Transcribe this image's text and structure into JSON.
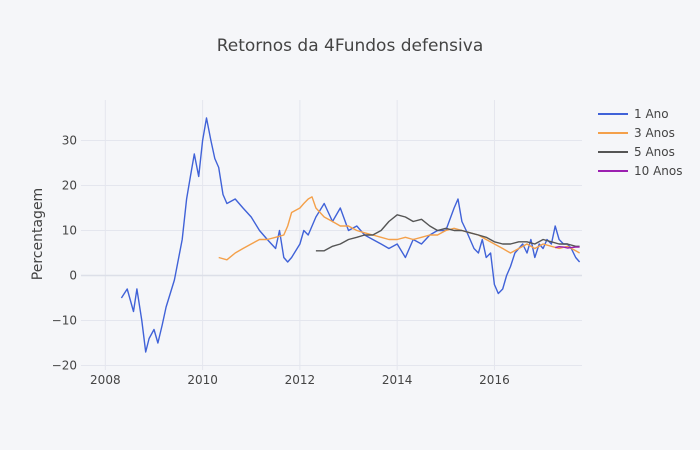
{
  "chart_data": {
    "type": "line",
    "title": "Retornos da 4Fundos defensiva",
    "xlabel": "",
    "ylabel": "Percentagem",
    "xlim": [
      2007.5,
      2017.8
    ],
    "ylim": [
      -21,
      39
    ],
    "x_ticks": [
      2008,
      2010,
      2012,
      2014,
      2016
    ],
    "x_tick_labels": [
      "2008",
      "2010",
      "2012",
      "2014",
      "2016"
    ],
    "y_ticks": [
      -20,
      -10,
      0,
      10,
      20,
      30
    ],
    "y_tick_labels": [
      "−20",
      "−10",
      "0",
      "10",
      "20",
      "30"
    ],
    "grid": true,
    "legend_position": "top-right",
    "series": [
      {
        "name": "1 Ano",
        "color": "#4062d8",
        "x": [
          2008.33,
          2008.45,
          2008.58,
          2008.65,
          2008.75,
          2008.83,
          2008.9,
          2009.0,
          2009.08,
          2009.17,
          2009.25,
          2009.42,
          2009.58,
          2009.67,
          2009.75,
          2009.83,
          2009.92,
          2010.0,
          2010.08,
          2010.17,
          2010.25,
          2010.33,
          2010.42,
          2010.5,
          2010.67,
          2010.83,
          2011.0,
          2011.17,
          2011.33,
          2011.5,
          2011.58,
          2011.67,
          2011.75,
          2011.83,
          2012.0,
          2012.08,
          2012.17,
          2012.33,
          2012.5,
          2012.67,
          2012.83,
          2013.0,
          2013.17,
          2013.33,
          2013.5,
          2013.67,
          2013.83,
          2014.0,
          2014.17,
          2014.33,
          2014.5,
          2014.67,
          2014.83,
          2015.0,
          2015.17,
          2015.25,
          2015.33,
          2015.42,
          2015.5,
          2015.58,
          2015.67,
          2015.75,
          2015.83,
          2015.92,
          2016.0,
          2016.08,
          2016.17,
          2016.25,
          2016.33,
          2016.42,
          2016.5,
          2016.58,
          2016.67,
          2016.75,
          2016.83,
          2016.92,
          2017.0,
          2017.08,
          2017.17,
          2017.25,
          2017.33,
          2017.42,
          2017.5,
          2017.58,
          2017.67,
          2017.75
        ],
        "values": [
          -5,
          -3,
          -8,
          -3,
          -10,
          -17,
          -14,
          -12,
          -15,
          -11,
          -7,
          -1,
          8,
          17,
          22,
          27,
          22,
          30,
          35,
          30,
          26,
          24,
          18,
          16,
          17,
          15,
          13,
          10,
          8,
          6,
          10,
          4,
          3,
          4,
          7,
          10,
          9,
          13,
          16,
          12,
          15,
          10,
          11,
          9,
          8,
          7,
          6,
          7,
          4,
          8,
          7,
          9,
          10,
          10,
          15,
          17,
          12,
          10,
          8,
          6,
          5,
          8,
          4,
          5,
          -2,
          -4,
          -3,
          0,
          2,
          5,
          6,
          7,
          5,
          8,
          4,
          7,
          6,
          8,
          7,
          11,
          8,
          7,
          7,
          6,
          4,
          3
        ]
      },
      {
        "name": "3 Anos",
        "color": "#f4a04a",
        "x": [
          2010.33,
          2010.5,
          2010.67,
          2010.83,
          2011.0,
          2011.17,
          2011.33,
          2011.5,
          2011.67,
          2011.75,
          2011.83,
          2012.0,
          2012.08,
          2012.17,
          2012.25,
          2012.33,
          2012.5,
          2012.67,
          2012.83,
          2013.0,
          2013.17,
          2013.33,
          2013.5,
          2013.67,
          2013.83,
          2014.0,
          2014.17,
          2014.33,
          2014.5,
          2014.67,
          2014.83,
          2015.0,
          2015.17,
          2015.33,
          2015.5,
          2015.67,
          2015.83,
          2016.0,
          2016.17,
          2016.33,
          2016.5,
          2016.67,
          2016.83,
          2017.0,
          2017.17,
          2017.33,
          2017.5,
          2017.67,
          2017.75
        ],
        "values": [
          4,
          3.5,
          5,
          6,
          7,
          8,
          8,
          8.5,
          9,
          11,
          14,
          15,
          16,
          17,
          17.5,
          15,
          13,
          12,
          11,
          11,
          10,
          9.5,
          9,
          8.5,
          8,
          8,
          8.5,
          8,
          8.5,
          9,
          9,
          10,
          10.5,
          10,
          9.5,
          9,
          8,
          7,
          6,
          5,
          6,
          7,
          6,
          7,
          6.5,
          6,
          6.5,
          5.5,
          5
        ]
      },
      {
        "name": "5 Anos",
        "color": "#555555",
        "x": [
          2012.33,
          2012.5,
          2012.67,
          2012.83,
          2013.0,
          2013.17,
          2013.33,
          2013.5,
          2013.67,
          2013.83,
          2014.0,
          2014.17,
          2014.33,
          2014.5,
          2014.67,
          2014.83,
          2015.0,
          2015.17,
          2015.33,
          2015.5,
          2015.67,
          2015.83,
          2016.0,
          2016.17,
          2016.33,
          2016.5,
          2016.67,
          2016.83,
          2017.0,
          2017.17,
          2017.33,
          2017.5,
          2017.67,
          2017.75
        ],
        "values": [
          5.5,
          5.5,
          6.5,
          7,
          8,
          8.5,
          9,
          9,
          10,
          12,
          13.5,
          13,
          12,
          12.5,
          11,
          10,
          10.5,
          10,
          10,
          9.5,
          9,
          8.5,
          7.5,
          7,
          7,
          7.5,
          7.5,
          7,
          8,
          7.5,
          7,
          7,
          6.5,
          6.5
        ]
      },
      {
        "name": "10 Anos",
        "color": "#9b1fb0",
        "x": [
          2017.25,
          2017.33,
          2017.42,
          2017.5,
          2017.58,
          2017.67,
          2017.75
        ],
        "values": [
          6.2,
          6.4,
          6.3,
          6.1,
          6.2,
          6.3,
          6.3
        ]
      }
    ]
  }
}
